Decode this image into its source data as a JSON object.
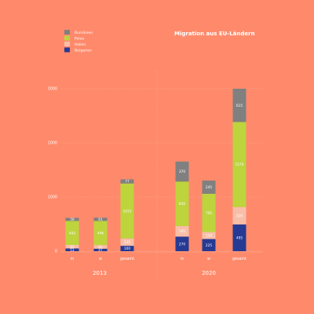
{
  "chart_data": {
    "type": "bar",
    "stacked": true,
    "title": "Migration aus EU-Ländern",
    "groups": [
      {
        "label": "2013",
        "categories": [
          "m",
          "w",
          "gesamt"
        ],
        "series": {
          "Bulgarien": [
            51,
            47,
            100
          ],
          "Italien": [
            65,
            65,
            135
          ],
          "Polen": [
            442,
            446,
            1015
          ],
          "Rumänien": [
            58,
            61,
            77
          ]
        }
      },
      {
        "label": "2020",
        "categories": [
          "m",
          "w",
          "gesamt"
        ],
        "series": {
          "Bulgarien": [
            270,
            225,
            495
          ],
          "Italien": [
            195,
            130,
            320
          ],
          "Polen": [
            820,
            705,
            1570
          ],
          "Rumänien": [
            370,
            245,
            615
          ]
        }
      }
    ],
    "series": [
      {
        "name": "Rumänien",
        "color": "#808080"
      },
      {
        "name": "Polen",
        "color": "#BDD43D"
      },
      {
        "name": "Italien",
        "color": "#F8BEA8"
      },
      {
        "name": "Bulgarien",
        "color": "#263A94"
      }
    ],
    "data_labels": {
      "2013": {
        "m": [
          "51",
          "65",
          "442",
          "58"
        ],
        "w": [
          "47",
          "65",
          "446",
          "61"
        ],
        "gesamt": [
          "100",
          "135",
          "1015",
          "77"
        ]
      },
      "2020": {
        "m": [
          "270",
          "195",
          "820",
          "370"
        ],
        "w": [
          "225",
          "130",
          "705",
          "245"
        ],
        "gesamt": [
          "495",
          "320",
          "1570",
          "615"
        ]
      }
    },
    "ylim": [
      0,
      3000
    ],
    "yticks": [
      "0",
      "1000",
      "2000",
      "3000"
    ],
    "grid": true,
    "legend_position": "top-left"
  }
}
